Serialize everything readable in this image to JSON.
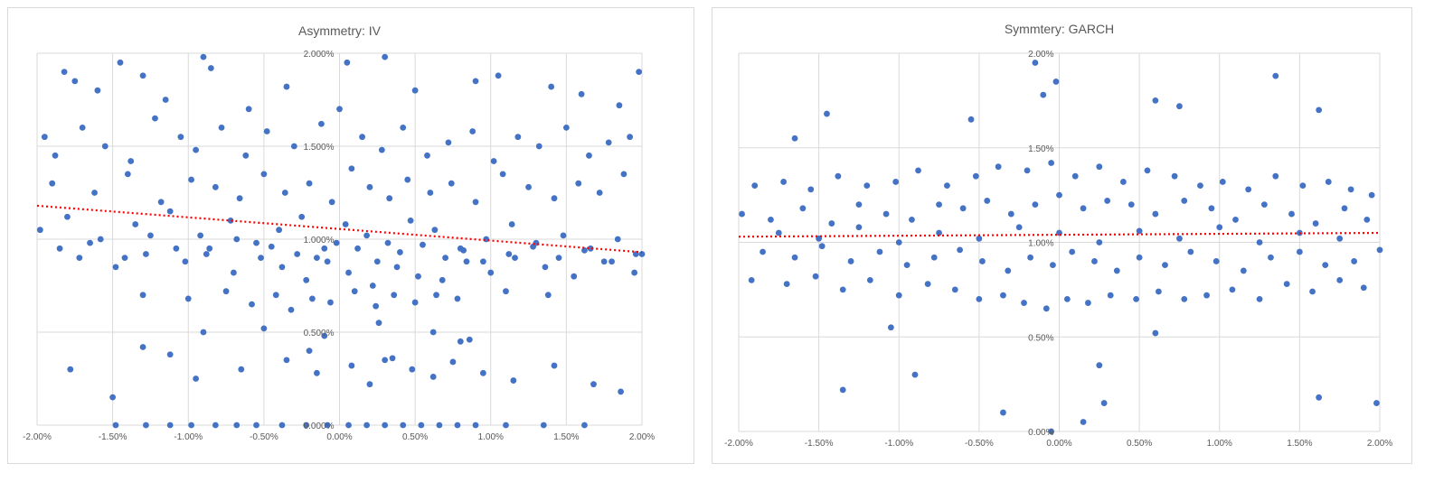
{
  "chart_data": [
    {
      "type": "scatter",
      "title": "Asymmetry: IV",
      "xlabel": "",
      "ylabel": "",
      "xlim": [
        -2.0,
        2.0
      ],
      "ylim": [
        0.0,
        2.0
      ],
      "x_ticks": [
        "-2.00%",
        "-1.50%",
        "-1.00%",
        "-0.50%",
        "0.00%",
        "0.50%",
        "1.00%",
        "1.50%",
        "2.00%"
      ],
      "y_ticks": [
        "0.000%",
        "0.500%",
        "1.000%",
        "1.500%",
        "2.000%"
      ],
      "grid": true,
      "series": [
        {
          "x": [
            -1.82,
            -1.75,
            -1.6,
            -1.45,
            -1.3,
            -1.15,
            -0.9,
            -0.85,
            -0.6,
            -0.35,
            0.05,
            0.3,
            0.5,
            0.9,
            1.05,
            1.4,
            1.6,
            1.85,
            1.98,
            -1.95,
            -1.88,
            -1.7,
            -1.55,
            -1.38,
            -1.22,
            -1.05,
            -0.95,
            -0.78,
            -0.62,
            -0.48,
            -0.3,
            -0.12,
            0.0,
            0.15,
            0.28,
            0.42,
            0.58,
            0.72,
            0.88,
            1.02,
            1.18,
            1.32,
            1.5,
            1.65,
            1.78,
            1.92,
            -1.9,
            -1.62,
            -1.4,
            -1.18,
            -0.98,
            -0.82,
            -0.66,
            -0.5,
            -0.36,
            -0.2,
            -0.05,
            0.08,
            0.2,
            0.33,
            0.45,
            0.6,
            0.74,
            0.9,
            1.08,
            1.25,
            1.42,
            1.58,
            1.72,
            1.88,
            -1.98,
            -1.8,
            -1.58,
            -1.35,
            -1.12,
            -0.92,
            -0.72,
            -0.55,
            -0.4,
            -0.25,
            -0.1,
            0.04,
            0.18,
            0.32,
            0.47,
            0.63,
            0.8,
            0.97,
            1.14,
            1.3,
            1.48,
            1.66,
            1.84,
            2.0,
            -1.72,
            -1.48,
            -1.28,
            -1.02,
            -0.86,
            -0.7,
            -0.52,
            -0.38,
            -0.22,
            -0.08,
            0.06,
            0.22,
            0.38,
            0.52,
            0.68,
            0.84,
            1.0,
            1.16,
            1.36,
            1.55,
            1.75,
            1.95,
            -1.85,
            -1.65,
            -1.42,
            -1.25,
            -1.08,
            -0.88,
            -0.68,
            -0.45,
            -0.28,
            -0.15,
            -0.02,
            0.12,
            0.25,
            0.4,
            0.55,
            0.7,
            0.82,
            0.95,
            1.12,
            1.28,
            1.45,
            1.62,
            1.8,
            1.96,
            -1.3,
            -1.0,
            -0.75,
            -0.58,
            -0.42,
            -0.32,
            -0.18,
            -0.06,
            0.1,
            0.24,
            0.36,
            0.5,
            0.64,
            0.78,
            1.1,
            1.38,
            -0.9,
            -0.5,
            -0.1,
            0.26,
            0.62,
            0.86,
            -1.48,
            -1.28,
            -1.12,
            -0.98,
            -0.82,
            -0.68,
            -0.55,
            -0.38,
            -0.22,
            -0.08,
            0.06,
            0.18,
            0.3,
            0.42,
            0.54,
            0.66,
            0.78,
            0.9,
            1.1,
            1.35,
            1.62,
            -1.78,
            -1.3,
            -1.12,
            -0.95,
            -0.65,
            -0.35,
            -0.15,
            0.08,
            0.2,
            0.35,
            0.48,
            0.62,
            0.75,
            0.95,
            1.15,
            1.42,
            1.68,
            1.86,
            -1.5,
            -0.2,
            0.3,
            0.8
          ],
          "y": [
            1.9,
            1.85,
            1.8,
            1.95,
            1.88,
            1.75,
            1.98,
            1.92,
            1.7,
            1.82,
            1.95,
            1.98,
            1.8,
            1.85,
            1.88,
            1.82,
            1.78,
            1.72,
            1.9,
            1.55,
            1.45,
            1.6,
            1.5,
            1.42,
            1.65,
            1.55,
            1.48,
            1.6,
            1.45,
            1.58,
            1.5,
            1.62,
            1.7,
            1.55,
            1.48,
            1.6,
            1.45,
            1.52,
            1.58,
            1.42,
            1.55,
            1.5,
            1.6,
            1.45,
            1.52,
            1.55,
            1.3,
            1.25,
            1.35,
            1.2,
            1.32,
            1.28,
            1.22,
            1.35,
            1.25,
            1.3,
            1.2,
            1.38,
            1.28,
            1.22,
            1.32,
            1.25,
            1.3,
            1.2,
            1.35,
            1.28,
            1.22,
            1.3,
            1.25,
            1.35,
            1.05,
            1.12,
            1.0,
            1.08,
            1.15,
            1.02,
            1.1,
            0.98,
            1.05,
            1.12,
            0.95,
            1.08,
            1.02,
            0.98,
            1.1,
            1.05,
            0.95,
            1.0,
            1.08,
            0.98,
            1.02,
            0.95,
            1.0,
            0.92,
            0.9,
            0.85,
            0.92,
            0.88,
            0.95,
            0.82,
            0.9,
            0.85,
            0.78,
            0.88,
            0.82,
            0.75,
            0.85,
            0.8,
            0.78,
            0.88,
            0.82,
            0.9,
            0.85,
            0.8,
            0.88,
            0.82,
            0.95,
            0.98,
            0.9,
            1.02,
            0.95,
            0.92,
            1.0,
            0.96,
            0.92,
            0.9,
            0.98,
            0.95,
            0.88,
            0.93,
            0.97,
            0.9,
            0.94,
            0.88,
            0.92,
            0.96,
            0.9,
            0.94,
            0.88,
            0.92,
            0.7,
            0.68,
            0.72,
            0.65,
            0.7,
            0.62,
            0.68,
            0.66,
            0.72,
            0.64,
            0.7,
            0.66,
            0.7,
            0.68,
            0.72,
            0.7,
            0.5,
            0.52,
            0.48,
            0.55,
            0.5,
            0.46,
            0.0,
            0.0,
            0.0,
            0.0,
            0.0,
            0.0,
            0.0,
            0.0,
            0.0,
            0.0,
            0.0,
            0.0,
            0.0,
            0.0,
            0.0,
            0.0,
            0.0,
            0.0,
            0.0,
            0.0,
            0.0,
            0.3,
            0.42,
            0.38,
            0.25,
            0.3,
            0.35,
            0.28,
            0.32,
            0.22,
            0.36,
            0.3,
            0.26,
            0.34,
            0.28,
            0.24,
            0.32,
            0.22,
            0.18,
            0.15,
            0.4,
            0.35,
            0.45
          ],
          "trendline": {
            "type": "linear",
            "x": [
              -2.0,
              2.0
            ],
            "y": [
              1.18,
              0.93
            ]
          }
        }
      ]
    },
    {
      "type": "scatter",
      "title": "Symmtery: GARCH",
      "xlabel": "",
      "ylabel": "",
      "xlim": [
        -2.0,
        2.0
      ],
      "ylim": [
        0.0,
        2.0
      ],
      "x_ticks": [
        "-2.00%",
        "-1.50%",
        "-1.00%",
        "-0.50%",
        "0.00%",
        "0.50%",
        "1.00%",
        "1.50%",
        "2.00%"
      ],
      "y_ticks": [
        "0.00%",
        "0.50%",
        "1.00%",
        "1.50%",
        "2.00%"
      ],
      "grid": true,
      "series": [
        {
          "x": [
            -0.15,
            -0.1,
            -0.02,
            0.6,
            0.75,
            1.35,
            1.62,
            -1.45,
            -0.55,
            -1.65,
            -1.9,
            -1.72,
            -1.55,
            -1.38,
            -1.2,
            -1.02,
            -0.88,
            -0.7,
            -0.52,
            -0.38,
            -0.2,
            -0.05,
            0.1,
            0.25,
            0.4,
            0.55,
            0.72,
            0.88,
            1.02,
            1.18,
            1.35,
            1.52,
            1.68,
            1.82,
            1.95,
            -1.98,
            -1.8,
            -1.6,
            -1.42,
            -1.25,
            -1.08,
            -0.92,
            -0.75,
            -0.6,
            -0.45,
            -0.3,
            -0.15,
            0.0,
            0.15,
            0.3,
            0.45,
            0.6,
            0.78,
            0.95,
            1.1,
            1.28,
            1.45,
            1.6,
            1.78,
            1.92,
            -1.85,
            -1.65,
            -1.48,
            -1.3,
            -1.12,
            -0.95,
            -0.78,
            -0.62,
            -0.48,
            -0.32,
            -0.18,
            -0.04,
            0.08,
            0.22,
            0.36,
            0.5,
            0.66,
            0.82,
            0.98,
            1.15,
            1.32,
            1.5,
            1.66,
            1.84,
            2.0,
            -1.92,
            -1.7,
            -1.52,
            -1.35,
            -1.18,
            -1.0,
            -0.82,
            -0.65,
            -0.5,
            -0.35,
            -0.22,
            -0.08,
            0.05,
            0.18,
            0.32,
            0.48,
            0.62,
            0.78,
            0.92,
            1.08,
            1.25,
            1.42,
            1.58,
            1.75,
            1.9,
            -1.75,
            -1.5,
            -1.25,
            -1.0,
            -0.75,
            -0.5,
            -0.25,
            0.0,
            0.25,
            0.5,
            0.75,
            1.0,
            1.25,
            1.5,
            1.75,
            -0.9,
            -1.35,
            0.25,
            0.15,
            -0.35,
            -0.05,
            0.28,
            1.62,
            1.98,
            -1.05,
            0.6
          ],
          "y": [
            1.95,
            1.78,
            1.85,
            1.75,
            1.72,
            1.88,
            1.7,
            1.68,
            1.65,
            1.55,
            1.3,
            1.32,
            1.28,
            1.35,
            1.3,
            1.32,
            1.38,
            1.3,
            1.35,
            1.4,
            1.38,
            1.42,
            1.35,
            1.4,
            1.32,
            1.38,
            1.35,
            1.3,
            1.32,
            1.28,
            1.35,
            1.3,
            1.32,
            1.28,
            1.25,
            1.15,
            1.12,
            1.18,
            1.1,
            1.2,
            1.15,
            1.12,
            1.2,
            1.18,
            1.22,
            1.15,
            1.2,
            1.25,
            1.18,
            1.22,
            1.2,
            1.15,
            1.22,
            1.18,
            1.12,
            1.2,
            1.15,
            1.1,
            1.18,
            1.12,
            0.95,
            0.92,
            0.98,
            0.9,
            0.95,
            0.88,
            0.92,
            0.96,
            0.9,
            0.85,
            0.92,
            0.88,
            0.95,
            0.9,
            0.85,
            0.92,
            0.88,
            0.95,
            0.9,
            0.85,
            0.92,
            0.95,
            0.88,
            0.9,
            0.96,
            0.8,
            0.78,
            0.82,
            0.75,
            0.8,
            0.72,
            0.78,
            0.75,
            0.7,
            0.72,
            0.68,
            0.65,
            0.7,
            0.68,
            0.72,
            0.7,
            0.74,
            0.7,
            0.72,
            0.75,
            0.7,
            0.78,
            0.74,
            0.8,
            0.76,
            1.05,
            1.02,
            1.08,
            1.0,
            1.05,
            1.02,
            1.08,
            1.05,
            1.0,
            1.06,
            1.02,
            1.08,
            1.0,
            1.05,
            1.02,
            0.3,
            0.22,
            0.35,
            0.05,
            0.1,
            0.0,
            0.15,
            0.18,
            0.15,
            0.55,
            0.52
          ],
          "trendline": {
            "type": "linear",
            "x": [
              -2.0,
              2.0
            ],
            "y": [
              1.03,
              1.05
            ]
          }
        }
      ]
    }
  ]
}
